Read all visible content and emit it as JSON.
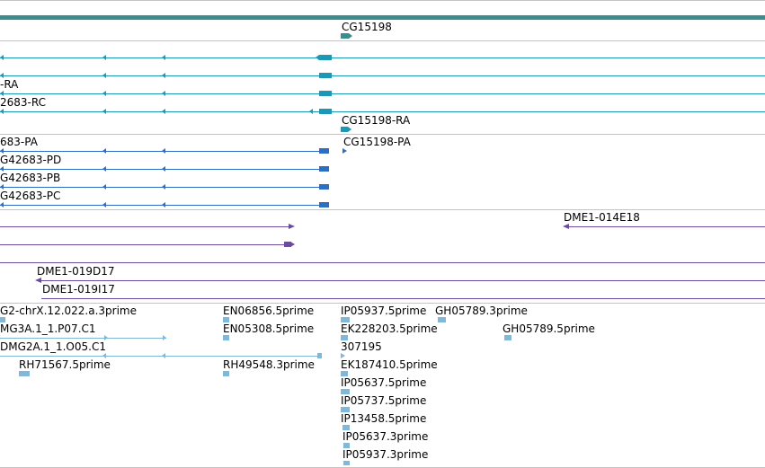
{
  "colors": {
    "band": "#3a8e8e",
    "gene": "#3a8e8e",
    "transcript": "#1a98b6",
    "cds": "#2e6dc4",
    "clone": "#6b4aa0",
    "est": "#7fb8d8",
    "divider": "#c4c4c4"
  },
  "tracks": {
    "gene": {
      "labels": [
        "CG15198"
      ]
    },
    "transcripts": {
      "labels": [
        "-RA",
        "2683-RC",
        "CG15198-RA"
      ]
    },
    "proteins": {
      "labels": [
        "683-PA",
        "CG15198-PA",
        "G42683-PD",
        "G42683-PB",
        "G42683-PC"
      ]
    },
    "clones": {
      "labels": [
        "DME1-014E18",
        "DME1-019D17",
        "DME1-019I17"
      ]
    },
    "ests": {
      "labels": [
        "G2-chrX.12.022.a.3prime",
        "EN06856.5prime",
        "IP05937.5prime",
        "GH05789.3prime",
        "MG3A.1_1.P07.C1",
        "EN05308.5prime",
        "EK228203.5prime",
        "GH05789.5prime",
        "DMG2A.1_1.O05.C1",
        "307195",
        "RH71567.5prime",
        "RH49548.3prime",
        "EK187410.5prime",
        "IP05637.5prime",
        "IP05737.5prime",
        "IP13458.5prime",
        "IP05637.3prime",
        "IP05937.3prime"
      ]
    }
  }
}
